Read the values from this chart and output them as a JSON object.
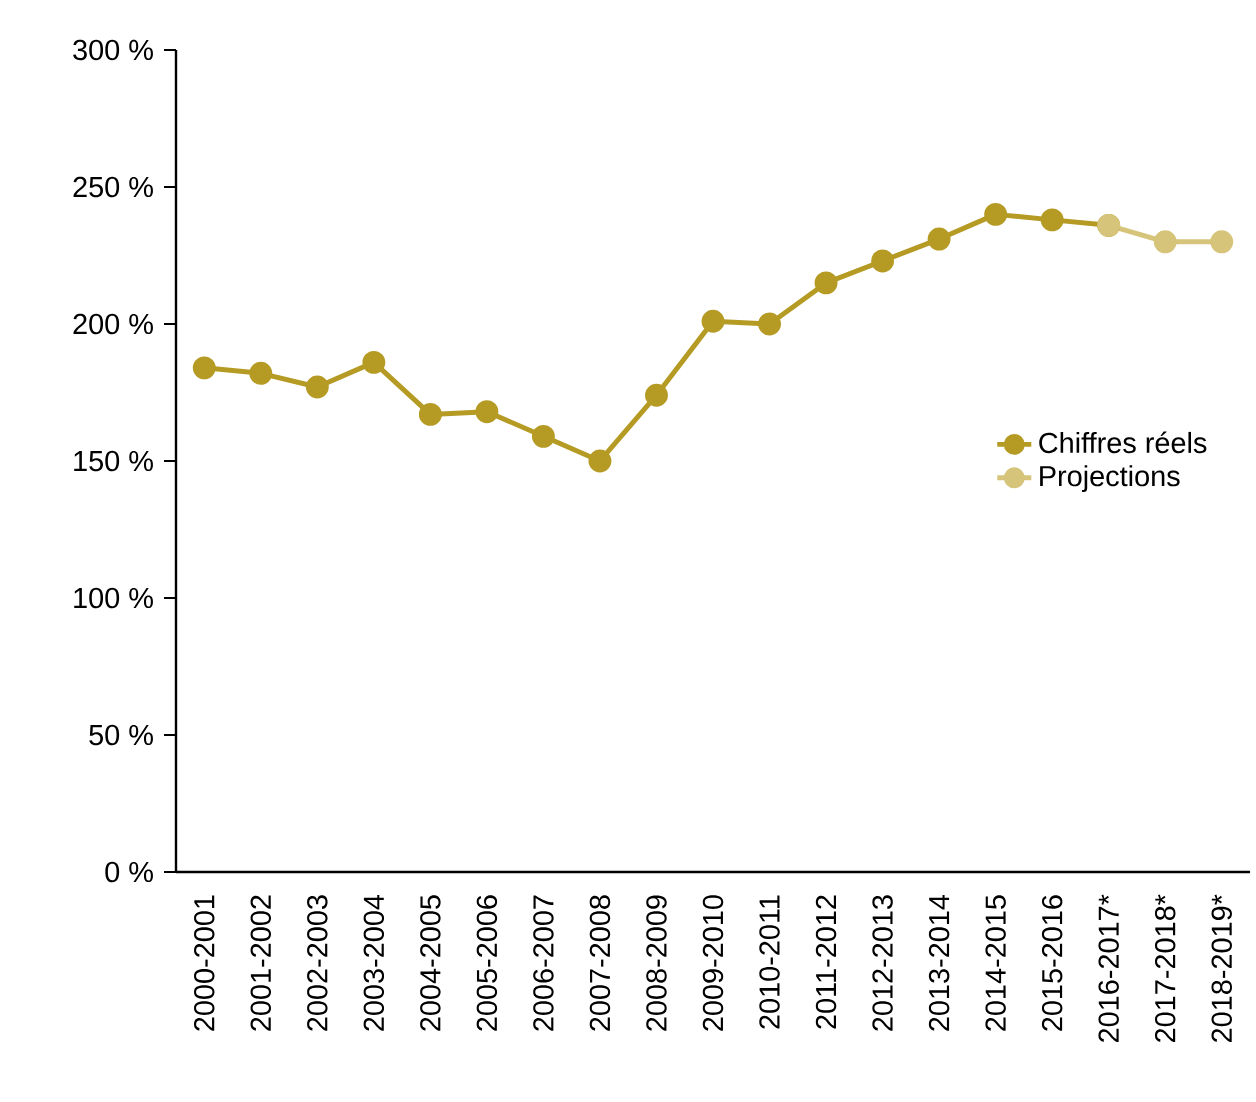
{
  "chart_data": {
    "type": "line",
    "categories": [
      "2000-2001",
      "2001-2002",
      "2002-2003",
      "2003-2004",
      "2004-2005",
      "2005-2006",
      "2006-2007",
      "2007-2008",
      "2008-2009",
      "2009-2010",
      "2010-2011",
      "2011-2012",
      "2012-2013",
      "2013-2014",
      "2014-2015",
      "2015-2016",
      "2016-2017*",
      "2017-2018*",
      "2018-2019*"
    ],
    "series": [
      {
        "name": "Chiffres réels",
        "color": "#b59a24",
        "values": [
          184,
          182,
          177,
          186,
          167,
          168,
          159,
          150,
          174,
          201,
          200,
          215,
          223,
          231,
          240,
          238,
          236,
          null,
          null
        ]
      },
      {
        "name": "Projections",
        "color": "#d6c47a",
        "values": [
          null,
          null,
          null,
          null,
          null,
          null,
          null,
          null,
          null,
          null,
          null,
          null,
          null,
          null,
          null,
          null,
          236,
          230,
          230
        ]
      }
    ],
    "ylim": [
      0,
      300
    ],
    "yticks": [
      {
        "value": 0,
        "label": "0 %"
      },
      {
        "value": 50,
        "label": "50 %"
      },
      {
        "value": 100,
        "label": "100 %"
      },
      {
        "value": 150,
        "label": "150 %"
      },
      {
        "value": 200,
        "label": "200 %"
      },
      {
        "value": 250,
        "label": "250 %"
      },
      {
        "value": 300,
        "label": "300 %"
      }
    ],
    "grid": false,
    "legend": "right",
    "marker": "circle",
    "line_style": "solid"
  }
}
